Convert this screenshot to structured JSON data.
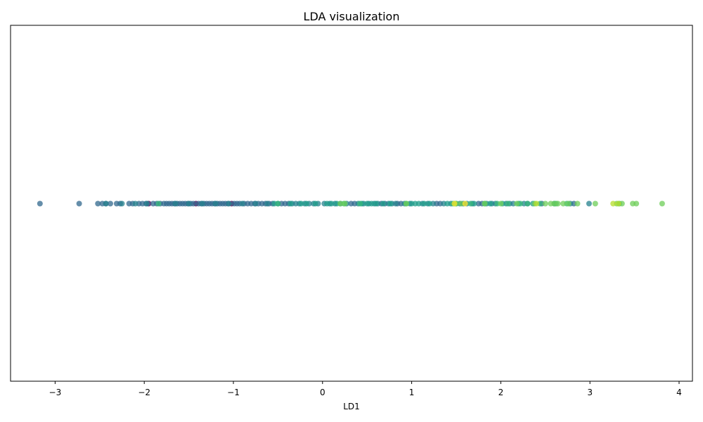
{
  "chart_data": {
    "type": "scatter",
    "title": "LDA visualization",
    "xlabel": "LD1",
    "ylabel": "",
    "xlim": [
      -3.5,
      4.15
    ],
    "x_ticks": [
      -3,
      -2,
      -1,
      0,
      1,
      2,
      3,
      4
    ],
    "x_tick_labels": [
      "−3",
      "−2",
      "−1",
      "0",
      "1",
      "2",
      "3",
      "4"
    ],
    "y_value": 0,
    "y_ticks_shown": false,
    "grid": false,
    "legend": "none",
    "marker_alpha": 0.75,
    "colormap": "viridis",
    "class_colors": {
      "c1": "#440154",
      "c2": "#31688e",
      "c3": "#26828e",
      "c4": "#1f9e89",
      "c5": "#35b779",
      "c6": "#6ece58",
      "c7": "#b5de2b",
      "c8": "#fde725"
    },
    "series": [
      {
        "class": "c1",
        "x": [
          -1.95,
          -1.42,
          -1.02
        ]
      },
      {
        "class": "c2",
        "x": [
          -3.17,
          -2.73,
          -2.52,
          -2.47,
          -2.43,
          -2.38,
          -2.31,
          -2.27,
          -2.17,
          -2.13,
          -2.06,
          -2.02,
          -1.98,
          -1.9,
          -1.86,
          -1.82,
          -1.78,
          -1.75,
          -1.72,
          -1.69,
          -1.66,
          -1.63,
          -1.6,
          -1.57,
          -1.54,
          -1.51,
          -1.48,
          -1.45,
          -1.39,
          -1.36,
          -1.33,
          -1.3,
          -1.27,
          -1.24,
          -1.21,
          -1.18,
          -1.15,
          -1.12,
          -1.09,
          -1.06,
          -0.99,
          -0.96,
          -0.93,
          -0.88,
          -0.84,
          -0.8,
          -0.76,
          -0.72,
          -0.68,
          -0.64,
          -0.6,
          -0.56,
          -0.46,
          -0.42,
          -0.38,
          0.32,
          0.36,
          0.66,
          0.7,
          0.84,
          0.88,
          1.28,
          1.32,
          1.58,
          1.75,
          1.79,
          2.46,
          2.82
        ]
      },
      {
        "class": "c3",
        "x": [
          -2.43,
          -2.25,
          -2.1,
          -1.97,
          -1.65,
          -1.5,
          -1.35,
          -1.2,
          -1.05,
          -0.9,
          -0.75,
          -0.62,
          -0.5,
          -0.34,
          -0.3,
          -0.26,
          -0.2,
          -0.15,
          -0.1,
          -0.05,
          0.02,
          0.08,
          0.14,
          0.2,
          0.27,
          0.4,
          0.46,
          0.52,
          0.58,
          0.62,
          0.74,
          0.78,
          0.82,
          0.92,
          0.98,
          1.12,
          1.18,
          1.24,
          1.36,
          1.44,
          1.54,
          1.62,
          1.68,
          1.84,
          1.9,
          1.94,
          2.06,
          2.1,
          2.14,
          2.26,
          2.3,
          2.78,
          2.99
        ]
      },
      {
        "class": "c4",
        "x": [
          -0.54,
          -0.36,
          -0.24,
          -0.18,
          -0.08,
          0.05,
          0.1,
          0.16,
          0.44,
          0.5,
          0.55,
          0.6,
          0.68,
          0.76,
          1.0,
          1.04,
          1.08,
          1.14,
          1.2,
          1.4,
          1.48,
          1.5,
          1.7,
          1.88,
          2.02,
          2.2,
          2.36,
          2.6
        ]
      },
      {
        "class": "c5",
        "x": [
          -1.84,
          -0.5,
          0.24,
          0.42,
          0.94,
          1.46,
          1.66,
          1.82,
          1.96,
          2.08,
          2.22,
          2.3,
          2.44,
          2.62,
          2.74,
          3.33
        ]
      },
      {
        "class": "c6",
        "x": [
          0.2,
          0.25,
          0.94,
          1.5,
          1.56,
          1.82,
          2.0,
          2.18,
          2.38,
          2.5,
          2.56,
          2.6,
          2.64,
          2.7,
          2.76,
          2.86,
          3.06,
          3.3,
          3.36,
          3.48,
          3.52,
          3.81
        ]
      },
      {
        "class": "c7",
        "x": [
          2.4,
          3.26,
          3.32
        ]
      },
      {
        "class": "c8",
        "x": [
          1.48,
          1.6
        ]
      }
    ]
  }
}
